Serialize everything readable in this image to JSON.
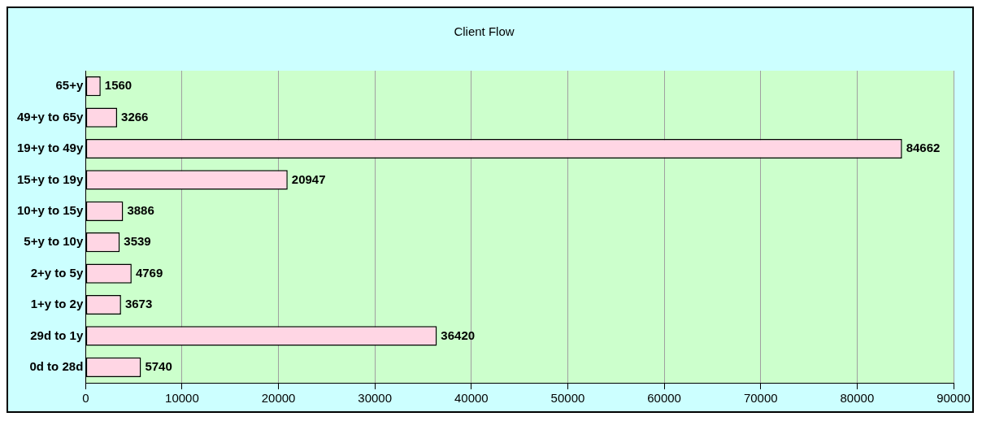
{
  "chart_data": {
    "type": "bar",
    "orientation": "horizontal",
    "title": "Client Flow",
    "categories": [
      "65+y",
      "49+y to 65y",
      "19+y to 49y",
      "15+y to 19y",
      "10+y to 15y",
      "5+y to 10y",
      "2+y to 5y",
      "1+y to 2y",
      "29d to 1y",
      "0d to 28d"
    ],
    "values": [
      1560,
      3266,
      84662,
      20947,
      3886,
      3539,
      4769,
      3673,
      36420,
      5740
    ],
    "color": "#ffd6e4",
    "xlim": [
      0,
      90000
    ],
    "xticks": [
      0,
      10000,
      20000,
      30000,
      40000,
      50000,
      60000,
      70000,
      80000,
      90000
    ],
    "grid": "x",
    "legend": false,
    "data_labels": true
  }
}
